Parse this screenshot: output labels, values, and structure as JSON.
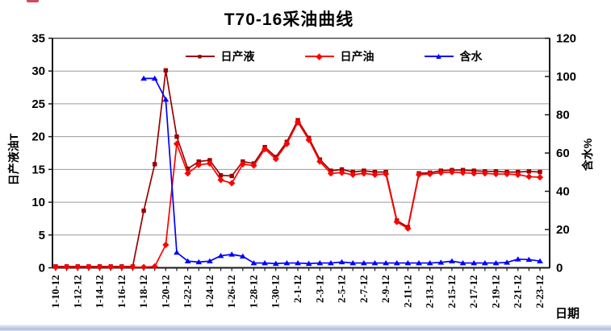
{
  "window": {
    "background": "#ffffff",
    "bottom_strip_colors": [
      "#eef2fa",
      "#aebdde"
    ]
  },
  "chart_data": {
    "type": "line",
    "title": "T70-16采油曲线",
    "xlabel": "日期",
    "ylabel_left": "日产液油T",
    "ylabel_right": "含水%",
    "ylim_left": [
      0,
      35
    ],
    "ylim_right": [
      0,
      120
    ],
    "y_left_ticks": [
      0,
      5,
      10,
      15,
      20,
      25,
      30,
      35
    ],
    "y_right_ticks": [
      0,
      20,
      40,
      60,
      80,
      100,
      120
    ],
    "grid": "horizontal",
    "legend_position": "top-inside",
    "x_label_every": 2,
    "categories": [
      "1-10-12",
      "1-11-12",
      "1-12-12",
      "1-13-12",
      "1-14-12",
      "1-15-12",
      "1-16-12",
      "1-17-12",
      "1-18-12",
      "1-19-12",
      "1-20-12",
      "1-21-12",
      "1-22-12",
      "1-23-12",
      "1-24-12",
      "1-25-12",
      "1-26-12",
      "1-27-12",
      "1-28-12",
      "1-29-12",
      "1-30-12",
      "1-31-12",
      "2-1-12",
      "2-2-12",
      "2-3-12",
      "2-4-12",
      "2-5-12",
      "2-6-12",
      "2-7-12",
      "2-8-12",
      "2-9-12",
      "2-10-12",
      "2-11-12",
      "2-12-12",
      "2-13-12",
      "2-14-12",
      "2-15-12",
      "2-16-12",
      "2-17-12",
      "2-18-12",
      "2-19-12",
      "2-20-12",
      "2-21-12",
      "2-22-12",
      "2-23-12"
    ],
    "series": [
      {
        "name": "日产液",
        "axis": "left",
        "color": "#990000",
        "marker": "square",
        "values": [
          0.2,
          0.2,
          0.2,
          0.2,
          0.2,
          0.2,
          0.2,
          0.2,
          8.7,
          15.8,
          30.1,
          20.0,
          15.1,
          16.2,
          16.4,
          14.1,
          14.0,
          16.2,
          15.9,
          18.4,
          16.9,
          19.2,
          22.5,
          19.8,
          16.5,
          14.8,
          15.0,
          14.6,
          14.8,
          14.6,
          14.6,
          7.2,
          6.2,
          14.4,
          14.5,
          14.8,
          14.9,
          14.9,
          14.8,
          14.7,
          14.7,
          14.6,
          14.6,
          14.7,
          14.6
        ]
      },
      {
        "name": "日产油",
        "axis": "left",
        "color": "#ff0000",
        "marker": "diamond",
        "values": [
          0.1,
          0.1,
          0.1,
          0.1,
          0.1,
          0.1,
          0.1,
          0.1,
          0.1,
          0.2,
          3.5,
          18.9,
          14.4,
          15.7,
          15.9,
          13.4,
          12.9,
          15.8,
          15.6,
          18.1,
          16.6,
          18.9,
          22.2,
          19.5,
          16.2,
          14.4,
          14.5,
          14.2,
          14.4,
          14.2,
          14.3,
          7.0,
          6.0,
          14.2,
          14.3,
          14.5,
          14.6,
          14.5,
          14.4,
          14.4,
          14.3,
          14.3,
          14.2,
          13.9,
          13.8
        ]
      },
      {
        "name": "含水",
        "axis": "right",
        "color": "#0000ff",
        "marker": "triangle",
        "values": [
          null,
          null,
          null,
          null,
          null,
          null,
          null,
          null,
          99,
          99,
          88,
          8,
          3.5,
          3.0,
          3.5,
          6.3,
          7.0,
          6.0,
          2.5,
          2.5,
          2.2,
          2.5,
          2.5,
          2.2,
          2.5,
          2.5,
          3.0,
          2.5,
          2.5,
          2.5,
          2.5,
          2.5,
          2.5,
          2.5,
          2.5,
          2.8,
          3.5,
          2.5,
          2.5,
          2.5,
          2.5,
          2.8,
          4.5,
          4.3,
          3.5
        ]
      }
    ]
  }
}
